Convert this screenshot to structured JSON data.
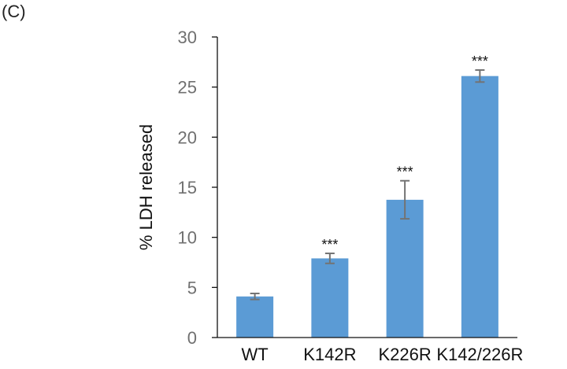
{
  "panel_label": "(C)",
  "chart_data": {
    "type": "bar",
    "title": "",
    "xlabel": "",
    "ylabel": "% LDH released",
    "ylim": [
      0,
      30
    ],
    "yticks": [
      0,
      5,
      10,
      15,
      20,
      25,
      30
    ],
    "grid": false,
    "legend": null,
    "categories": [
      "WT",
      "K142R",
      "K226R",
      "K142/226R"
    ],
    "values": [
      4.1,
      7.9,
      13.75,
      26.1
    ],
    "error": [
      0.3,
      0.5,
      1.9,
      0.6
    ],
    "annotations": [
      "",
      "***",
      "***",
      "***"
    ],
    "bar_color": "#5b9bd5",
    "error_color": "#737373"
  }
}
